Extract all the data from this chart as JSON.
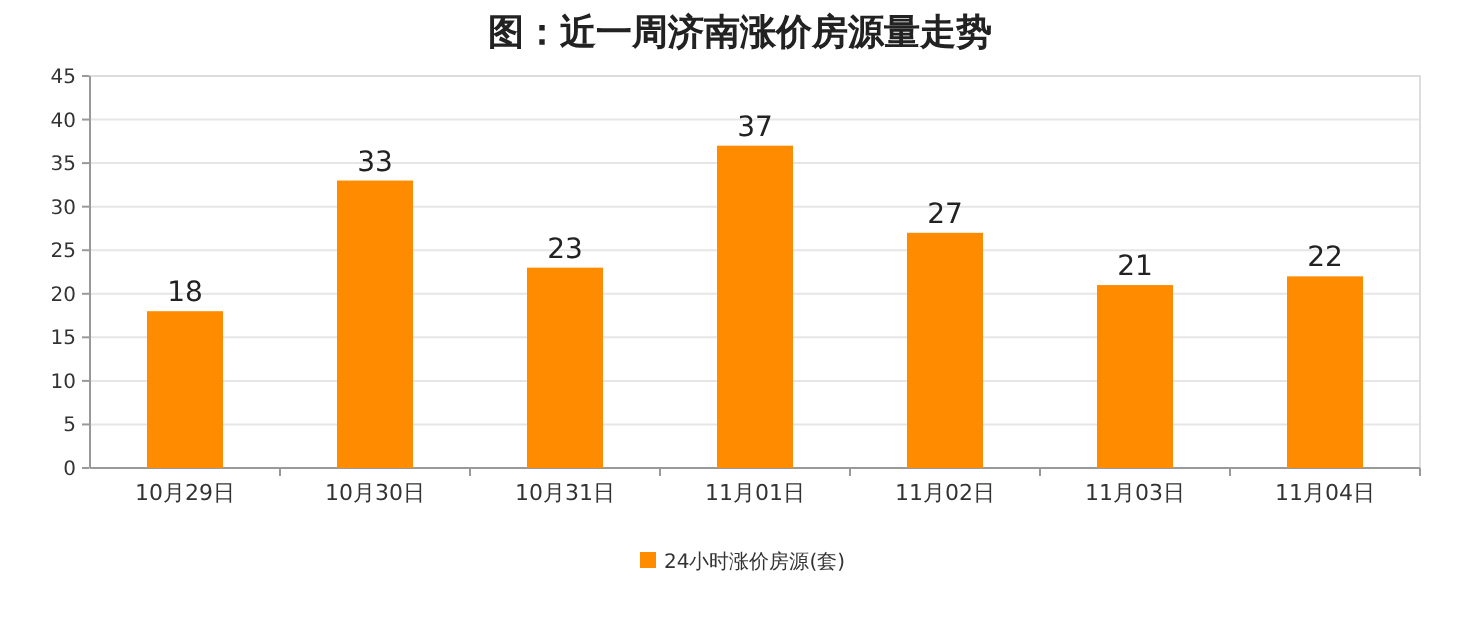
{
  "chart_data": {
    "type": "bar",
    "title": "图：近一周济南涨价房源量走势",
    "categories": [
      "10月29日",
      "10月30日",
      "10月31日",
      "11月01日",
      "11月02日",
      "11月03日",
      "11月04日"
    ],
    "series": [
      {
        "name": "24小时涨价房源(套)",
        "color": "#ff8c00",
        "values": [
          18,
          33,
          23,
          37,
          27,
          21,
          22
        ]
      }
    ],
    "ylim": [
      0,
      45
    ],
    "yticks": [
      0,
      5,
      10,
      15,
      20,
      25,
      30,
      35,
      40,
      45
    ],
    "grid": "y",
    "legend": "bottom",
    "data_labels": true
  }
}
